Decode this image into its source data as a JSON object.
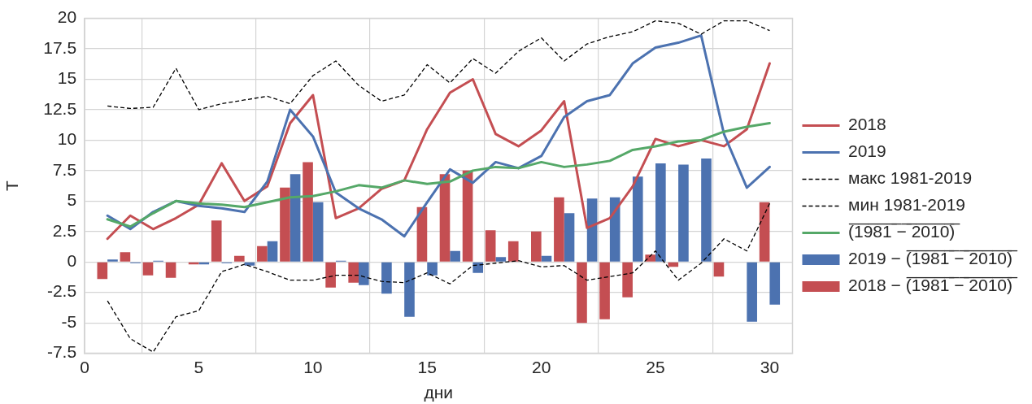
{
  "chart_data": {
    "type": "line",
    "xlabel": "дни",
    "ylabel": "T",
    "x": [
      1,
      2,
      3,
      4,
      5,
      6,
      7,
      8,
      9,
      10,
      11,
      12,
      13,
      14,
      15,
      16,
      17,
      18,
      19,
      20,
      21,
      22,
      23,
      24,
      25,
      26,
      27,
      28,
      29,
      30
    ],
    "xlim": [
      0,
      31
    ],
    "xticks": [
      0,
      5,
      10,
      15,
      20,
      25,
      30
    ],
    "ylim": [
      -7.5,
      20
    ],
    "yticks": [
      -7.5,
      -5,
      -2.5,
      0,
      2.5,
      5,
      7.5,
      10,
      12.5,
      15,
      17.5,
      20
    ],
    "grid": true,
    "legend": "right",
    "series": [
      {
        "name": "2018",
        "color": "#c44e52",
        "values": [
          1.9,
          3.8,
          2.7,
          3.6,
          4.7,
          8.1,
          5.0,
          6.2,
          11.4,
          13.7,
          3.6,
          4.4,
          6.0,
          6.7,
          10.9,
          13.9,
          15.0,
          10.5,
          9.5,
          10.8,
          13.2,
          2.8,
          3.6,
          6.2,
          10.1,
          9.5,
          10.0,
          9.5,
          10.9,
          16.3
        ]
      },
      {
        "name": "2019",
        "color": "#4c72b0",
        "values": [
          3.8,
          2.7,
          4.1,
          5.0,
          4.6,
          4.4,
          4.1,
          6.6,
          12.5,
          10.3,
          5.7,
          4.4,
          3.5,
          2.1,
          4.9,
          7.6,
          6.5,
          8.2,
          7.7,
          8.7,
          11.9,
          13.2,
          13.7,
          16.3,
          17.6,
          18.0,
          18.6,
          10.5,
          6.1,
          7.8
        ]
      },
      {
        "name": "макс 1981-2019",
        "color": "#000000",
        "line_style": "dashed",
        "values": [
          12.8,
          12.6,
          12.7,
          15.9,
          12.5,
          13.0,
          13.3,
          13.6,
          13.0,
          15.3,
          16.5,
          14.5,
          13.2,
          13.7,
          16.2,
          14.7,
          16.7,
          15.5,
          17.3,
          18.4,
          16.5,
          17.9,
          18.5,
          18.9,
          19.8,
          19.6,
          18.7,
          19.8,
          19.8,
          19.0
        ]
      },
      {
        "name": "мин 1981-2019",
        "color": "#000000",
        "line_style": "dashed",
        "values": [
          -3.2,
          -6.3,
          -7.4,
          -4.5,
          -4.0,
          -0.8,
          -0.2,
          -0.8,
          -1.5,
          -1.5,
          -1.1,
          -1.1,
          -1.6,
          -1.7,
          -0.9,
          -1.8,
          -0.3,
          -0.1,
          0.1,
          -0.4,
          -0.3,
          -1.5,
          -1.2,
          -0.9,
          0.9,
          -1.5,
          -0.1,
          1.9,
          0.9,
          4.8
        ]
      },
      {
        "name": "(̅1̅9̅8̅1̅ ̅−̅ ̅2̅0̅1̅0̅)̅",
        "color": "#55a868",
        "values": [
          3.5,
          2.9,
          4.0,
          5.0,
          4.8,
          4.7,
          4.5,
          4.9,
          5.3,
          5.4,
          5.8,
          6.3,
          6.1,
          6.7,
          6.4,
          6.6,
          7.5,
          7.8,
          7.7,
          8.2,
          7.8,
          8.0,
          8.3,
          9.2,
          9.5,
          9.9,
          10.0,
          10.7,
          11.1,
          11.4
        ]
      },
      {
        "type": "bar",
        "name": "2019 − (̅1̅9̅8̅1̅ ̅−̅ ̅2̅0̅1̅0̅)̅",
        "color": "#4c72b0",
        "values": [
          0.2,
          -0.1,
          0.1,
          0,
          -0.2,
          -0.1,
          -0.3,
          1.7,
          7.2,
          4.9,
          0.1,
          -1.9,
          -2.6,
          -4.5,
          -1.1,
          0.9,
          -0.9,
          0.4,
          0,
          0.5,
          4.0,
          5.2,
          5.3,
          7.0,
          8.1,
          8.0,
          8.5,
          0,
          -4.9,
          -3.5
        ]
      },
      {
        "type": "bar",
        "name": "2018 − (̅1̅9̅8̅1̅ ̅−̅ ̅2̅0̅1̅0̅)̅",
        "color": "#c44e52",
        "values": [
          -1.4,
          0.8,
          -1.1,
          -1.3,
          -0.2,
          3.4,
          0.5,
          1.3,
          6.1,
          8.2,
          -2.1,
          -1.7,
          0,
          0,
          4.5,
          7.2,
          7.5,
          2.6,
          1.7,
          2.5,
          5.3,
          -5.0,
          -4.7,
          -2.9,
          0.6,
          -0.4,
          0,
          -1.2,
          0,
          4.9
        ]
      }
    ]
  }
}
